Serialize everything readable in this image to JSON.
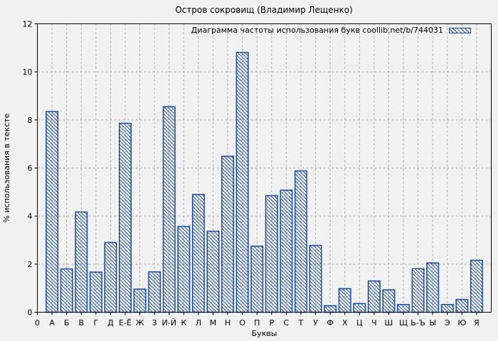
{
  "title": "Остров сокровищ (Владимир Лещенко)",
  "legend": {
    "label": "Диаграмма частоты использования букв coollib.net/b/744031"
  },
  "chart_data": {
    "type": "bar",
    "title": "Остров сокровищ (Владимир Лещенко)",
    "xlabel": "Буквы",
    "ylabel": "% использования в тексте",
    "origin_label": "0",
    "categories": [
      "А",
      "Б",
      "В",
      "Г",
      "Д",
      "Е-Ё",
      "Ж",
      "З",
      "И-Й",
      "К",
      "Л",
      "М",
      "Н",
      "О",
      "П",
      "Р",
      "С",
      "Т",
      "У",
      "Ф",
      "Х",
      "Ц",
      "Ч",
      "Ш",
      "Щ",
      "Ь-Ъ",
      "Ы",
      "Э",
      "Ю",
      "Я"
    ],
    "values": [
      8.35,
      1.8,
      4.17,
      1.67,
      2.9,
      7.86,
      0.96,
      1.68,
      8.55,
      3.57,
      4.9,
      3.37,
      6.49,
      10.81,
      2.75,
      4.85,
      5.08,
      5.88,
      2.78,
      0.27,
      0.98,
      0.36,
      1.3,
      0.93,
      0.32,
      1.81,
      2.05,
      0.32,
      0.53,
      2.16
    ],
    "ylim": [
      0,
      12
    ],
    "yticks": [
      0,
      2,
      4,
      6,
      8,
      10,
      12
    ],
    "grid": true,
    "grid_style": "dashed",
    "legend_position": "top-right",
    "bar_style": "diagonal-hatch",
    "colors": {
      "bar": "#1a4c9e",
      "grid": "#a9a9a9",
      "frame": "#000000",
      "background": "#f1f1f1"
    }
  }
}
